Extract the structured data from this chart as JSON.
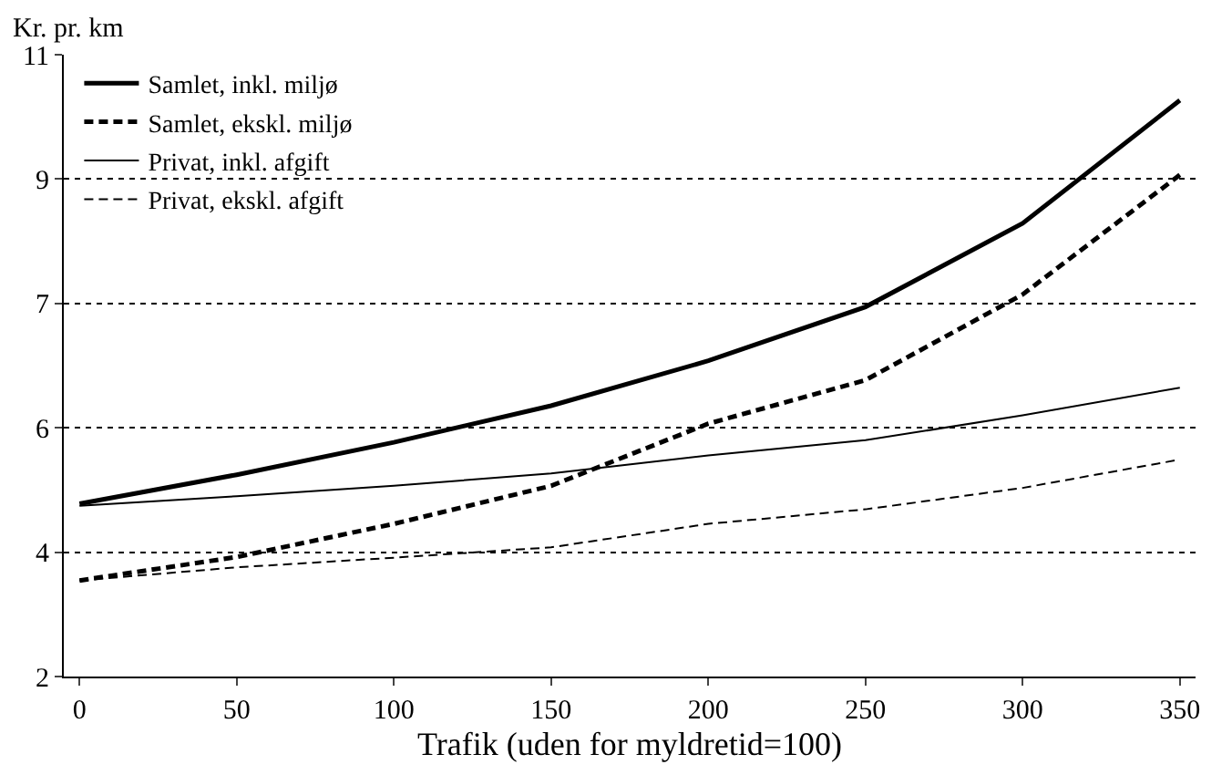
{
  "chart_data": {
    "type": "line",
    "ylabel": "Kr. pr. km",
    "xlabel": "Trafik (uden for myldretid=100)",
    "x": [
      0,
      50,
      100,
      150,
      200,
      250,
      300,
      350
    ],
    "series": [
      {
        "name": "Samlet, inkl. miljø",
        "color": "#000000",
        "line_style": "solid",
        "values": [
          4.5,
          4.92,
          5.39,
          5.92,
          6.57,
          7.35,
          8.56,
          10.34
        ]
      },
      {
        "name": "Samlet, ekskl. miljø",
        "color": "#000000",
        "line_style": "dashed",
        "values": [
          3.39,
          3.73,
          4.21,
          4.76,
          5.66,
          6.29,
          7.53,
          9.26
        ]
      },
      {
        "name": "Privat, inkl. afgift",
        "color": "#000000",
        "line_style": "solid",
        "values": [
          4.47,
          4.61,
          4.76,
          4.94,
          5.2,
          5.42,
          5.78,
          6.18
        ]
      },
      {
        "name": "Privat, ekskl. afgift",
        "color": "#000000",
        "line_style": "dashed",
        "values": [
          3.39,
          3.58,
          3.72,
          3.87,
          4.21,
          4.42,
          4.73,
          5.14
        ]
      }
    ],
    "xlim": [
      -5,
      355
    ],
    "xticks": [
      0,
      50,
      100,
      150,
      200,
      250,
      300,
      350
    ],
    "ylim": [
      2,
      11
    ],
    "yticks": [
      2,
      {
        "value": 3.8,
        "label": "4"
      },
      {
        "value": 5.6,
        "label": "6"
      },
      {
        "value": 7.4,
        "label": "7"
      },
      {
        "value": 9.2,
        "label": "9"
      },
      11
    ],
    "grid": "y",
    "legend": "top left",
    "marker": "none"
  }
}
